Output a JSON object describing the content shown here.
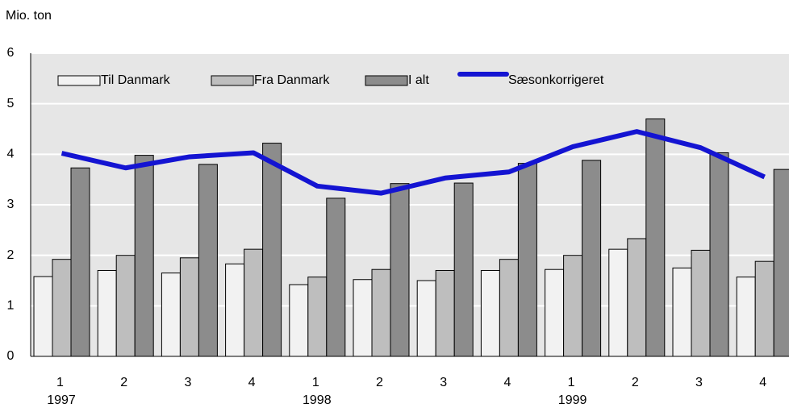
{
  "chart_data": {
    "type": "bar",
    "y_axis_label": "Mio. ton",
    "categories": [
      "1",
      "2",
      "3",
      "4",
      "1",
      "2",
      "3",
      "4",
      "1",
      "2",
      "3",
      "4"
    ],
    "year_groups": [
      "1997",
      "1998",
      "1999"
    ],
    "series": [
      {
        "name": "Til Danmark",
        "type": "bar",
        "color": "#f2f2f2",
        "values": [
          1.58,
          1.7,
          1.65,
          1.83,
          1.42,
          1.52,
          1.5,
          1.7,
          1.72,
          2.12,
          1.75,
          1.57
        ]
      },
      {
        "name": "Fra Danmark",
        "type": "bar",
        "color": "#bebebe",
        "values": [
          1.92,
          2.0,
          1.95,
          2.12,
          1.57,
          1.72,
          1.7,
          1.92,
          2.0,
          2.33,
          2.1,
          1.88
        ]
      },
      {
        "name": "I alt",
        "type": "bar",
        "color": "#8c8c8c",
        "values": [
          3.73,
          3.98,
          3.8,
          4.22,
          3.13,
          3.42,
          3.43,
          3.82,
          3.88,
          4.7,
          4.03,
          3.7
        ]
      },
      {
        "name": "Sæsonkorrigeret",
        "type": "line",
        "color": "#1414d2",
        "values": [
          4.02,
          3.73,
          3.95,
          4.03,
          3.37,
          3.23,
          3.53,
          3.65,
          4.15,
          4.45,
          4.13,
          3.55
        ]
      }
    ],
    "ylim": [
      0,
      6
    ],
    "yticks": [
      0,
      1,
      2,
      3,
      4,
      5,
      6
    ],
    "grid": true,
    "legend": "top-left"
  }
}
